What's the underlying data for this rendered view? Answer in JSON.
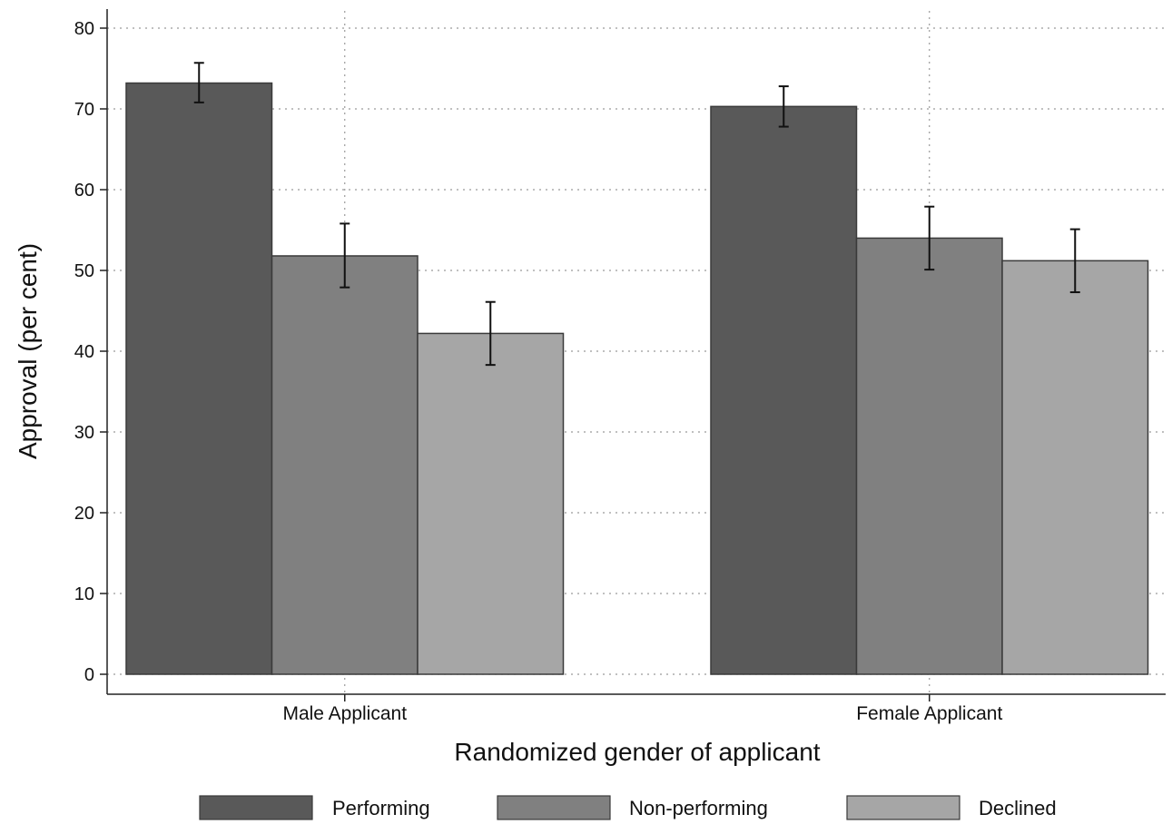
{
  "chart_data": {
    "type": "bar",
    "categories": [
      "Male Applicant",
      "Female Applicant"
    ],
    "xlabel": "Randomized gender of applicant",
    "ylabel": "Approval (per cent)",
    "ylim": [
      0,
      80
    ],
    "yticks": [
      "0",
      "10",
      "20",
      "30",
      "40",
      "50",
      "60",
      "70",
      "80"
    ],
    "grid": true,
    "legend_position": "bottom",
    "series": [
      {
        "name": "Performing",
        "color": "#595959",
        "values": [
          73.2,
          70.3
        ],
        "ci_low": [
          70.8,
          67.8
        ],
        "ci_high": [
          75.7,
          72.8
        ]
      },
      {
        "name": "Non-performing",
        "color": "#808080",
        "values": [
          51.8,
          54.0
        ],
        "ci_low": [
          47.9,
          50.1
        ],
        "ci_high": [
          55.8,
          57.9
        ]
      },
      {
        "name": "Declined",
        "color": "#a6a6a6",
        "values": [
          42.2,
          51.2
        ],
        "ci_low": [
          38.3,
          47.3
        ],
        "ci_high": [
          46.1,
          55.1
        ]
      }
    ]
  }
}
